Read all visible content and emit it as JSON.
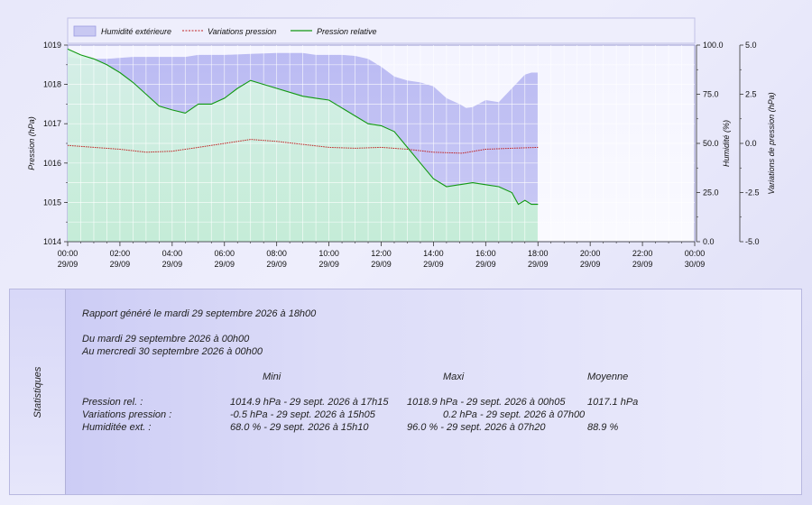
{
  "chart_data": {
    "type": "line",
    "legend": [
      "Humidité extérieure",
      "Variations pression",
      "Pression relative"
    ],
    "legend_position": "top-left",
    "grid": true,
    "x_labels": [
      {
        "time": "00:00",
        "date": "29/09"
      },
      {
        "time": "02:00",
        "date": "29/09"
      },
      {
        "time": "04:00",
        "date": "29/09"
      },
      {
        "time": "06:00",
        "date": "29/09"
      },
      {
        "time": "08:00",
        "date": "29/09"
      },
      {
        "time": "10:00",
        "date": "29/09"
      },
      {
        "time": "12:00",
        "date": "29/09"
      },
      {
        "time": "14:00",
        "date": "29/09"
      },
      {
        "time": "16:00",
        "date": "29/09"
      },
      {
        "time": "18:00",
        "date": "29/09"
      },
      {
        "time": "20:00",
        "date": "29/09"
      },
      {
        "time": "22:00",
        "date": "29/09"
      },
      {
        "time": "00:00",
        "date": "30/09"
      }
    ],
    "x_range_hours": [
      0,
      24
    ],
    "y_left": {
      "label": "Pression (hPa)",
      "range": [
        1014,
        1019
      ],
      "ticks": [
        "1014",
        "1015",
        "1016",
        "1017",
        "1018",
        "1019"
      ]
    },
    "y_right1": {
      "label": "Humidité (%)",
      "range": [
        0,
        100
      ],
      "ticks": [
        "0.0",
        "25.0",
        "50.0",
        "75.0",
        "100.0"
      ]
    },
    "y_right2": {
      "label": "Variations de pression (hPa)",
      "range": [
        -5,
        5
      ],
      "ticks": [
        "-5.0",
        "-2.5",
        "0.0",
        "2.5",
        "5.0"
      ]
    },
    "series": [
      {
        "name": "Humidité extérieure",
        "color": "#a8a8ee",
        "points": [
          [
            0,
            94
          ],
          [
            0.5,
            93
          ],
          [
            1.5,
            93
          ],
          [
            2.5,
            94
          ],
          [
            3.5,
            94
          ],
          [
            4.5,
            94
          ],
          [
            5,
            95
          ],
          [
            6,
            95
          ],
          [
            7,
            95.5
          ],
          [
            8,
            96
          ],
          [
            9,
            96
          ],
          [
            9.5,
            95
          ],
          [
            10.5,
            95
          ],
          [
            11,
            94.5
          ],
          [
            11.5,
            93
          ],
          [
            12,
            89
          ],
          [
            12.5,
            84
          ],
          [
            13,
            82
          ],
          [
            13.5,
            81
          ],
          [
            14,
            79
          ],
          [
            14.5,
            73
          ],
          [
            15,
            70
          ],
          [
            15.25,
            68
          ],
          [
            15.5,
            68.5
          ],
          [
            16,
            72
          ],
          [
            16.5,
            71
          ],
          [
            17,
            78
          ],
          [
            17.5,
            85
          ],
          [
            17.75,
            86
          ],
          [
            18,
            86
          ]
        ]
      },
      {
        "name": "Variations pression",
        "color": "#c02020",
        "points": [
          [
            0,
            -0.1
          ],
          [
            1,
            -0.2
          ],
          [
            2,
            -0.3
          ],
          [
            3,
            -0.45
          ],
          [
            4,
            -0.4
          ],
          [
            5,
            -0.2
          ],
          [
            6,
            0
          ],
          [
            7,
            0.2
          ],
          [
            8,
            0.1
          ],
          [
            9,
            -0.05
          ],
          [
            10,
            -0.2
          ],
          [
            11,
            -0.25
          ],
          [
            12,
            -0.2
          ],
          [
            13,
            -0.3
          ],
          [
            14,
            -0.45
          ],
          [
            15.1,
            -0.5
          ],
          [
            16,
            -0.3
          ],
          [
            17,
            -0.25
          ],
          [
            18,
            -0.2
          ]
        ]
      },
      {
        "name": "Pression relative",
        "color": "#119911",
        "points": [
          [
            0,
            1018.9
          ],
          [
            0.5,
            1018.75
          ],
          [
            1,
            1018.65
          ],
          [
            1.5,
            1018.5
          ],
          [
            2,
            1018.3
          ],
          [
            2.5,
            1018.05
          ],
          [
            3,
            1017.75
          ],
          [
            3.5,
            1017.45
          ],
          [
            4,
            1017.35
          ],
          [
            4.5,
            1017.27
          ],
          [
            5,
            1017.5
          ],
          [
            5.5,
            1017.5
          ],
          [
            6,
            1017.65
          ],
          [
            6.5,
            1017.9
          ],
          [
            7,
            1018.1
          ],
          [
            7.5,
            1018.0
          ],
          [
            8,
            1017.9
          ],
          [
            8.5,
            1017.8
          ],
          [
            9,
            1017.7
          ],
          [
            9.5,
            1017.65
          ],
          [
            10,
            1017.6
          ],
          [
            10.5,
            1017.4
          ],
          [
            11,
            1017.2
          ],
          [
            11.5,
            1017.0
          ],
          [
            12,
            1016.95
          ],
          [
            12.5,
            1016.8
          ],
          [
            13,
            1016.4
          ],
          [
            13.5,
            1016.0
          ],
          [
            14,
            1015.6
          ],
          [
            14.5,
            1015.4
          ],
          [
            15,
            1015.45
          ],
          [
            15.5,
            1015.5
          ],
          [
            16,
            1015.45
          ],
          [
            16.5,
            1015.4
          ],
          [
            17,
            1015.25
          ],
          [
            17.25,
            1014.95
          ],
          [
            17.5,
            1015.05
          ],
          [
            17.75,
            1014.95
          ],
          [
            18,
            1014.95
          ]
        ]
      }
    ]
  },
  "stats": {
    "side_label": "Statistiques",
    "report_line": "Rapport généré le mardi 29 septembre 2026 à 18h00",
    "from_line": "Du mardi 29 septembre 2026 à 00h00",
    "to_line": "Au mercredi 30 septembre 2026 à 00h00",
    "headers": {
      "min": "Mini",
      "max": "Maxi",
      "avg": "Moyenne"
    },
    "rows": [
      {
        "label": "Pression rel. :",
        "min": "1014.9 hPa - 29 sept. 2026 à 17h15",
        "max": "1018.9 hPa - 29 sept. 2026 à 00h05",
        "avg": "1017.1 hPa"
      },
      {
        "label": "Variations pression :",
        "min": "-0.5 hPa - 29 sept. 2026 à 15h05",
        "max": "0.2 hPa - 29 sept. 2026 à 07h00",
        "avg": ""
      },
      {
        "label": "Humiditée ext. :",
        "min": "68.0 % - 29 sept. 2026 à 15h10",
        "max": "96.0 % - 29 sept. 2026 à 07h20",
        "avg": "88.9 %"
      }
    ]
  }
}
